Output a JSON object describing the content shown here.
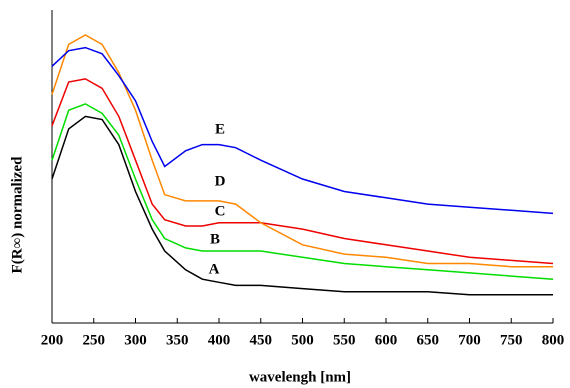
{
  "chart_data": {
    "type": "line",
    "x_label": "wavelengh [nm]",
    "y_label": "F(R∞) normalized",
    "x": [
      200,
      220,
      240,
      260,
      280,
      300,
      320,
      335,
      360,
      380,
      400,
      420,
      450,
      500,
      550,
      600,
      650,
      700,
      750,
      800
    ],
    "xlim": [
      200,
      800
    ],
    "xticks": [
      200,
      250,
      300,
      350,
      400,
      450,
      500,
      550,
      600,
      650,
      700,
      750,
      800
    ],
    "ylim": [
      0,
      100
    ],
    "series": [
      {
        "name": "A",
        "color": "#000000",
        "values": [
          46,
          62,
          66,
          65,
          57,
          42,
          30,
          23,
          17,
          14,
          13,
          12,
          12,
          11,
          10,
          10,
          10,
          9,
          9,
          9
        ]
      },
      {
        "name": "B",
        "color": "#00dd00",
        "values": [
          52,
          68,
          70,
          67,
          60,
          46,
          33,
          27,
          24,
          23,
          23,
          23,
          23,
          21,
          19,
          18,
          17,
          16,
          15,
          14
        ]
      },
      {
        "name": "C",
        "color": "#ee0000",
        "values": [
          63,
          77,
          78,
          75,
          66,
          52,
          38,
          33,
          31,
          31,
          32,
          32,
          32,
          30,
          27,
          25,
          23,
          21,
          20,
          19
        ]
      },
      {
        "name": "D",
        "color": "#ff8800",
        "values": [
          73,
          89,
          92,
          89,
          80,
          68,
          52,
          41,
          39,
          39,
          39,
          38,
          32,
          25,
          22,
          21,
          19,
          19,
          18,
          18
        ]
      },
      {
        "name": "E",
        "color": "#0000ee",
        "values": [
          82,
          87,
          88,
          86,
          79,
          71,
          58,
          50,
          55,
          57,
          57,
          56,
          52,
          46,
          42,
          40,
          38,
          37,
          36,
          35
        ]
      }
    ]
  }
}
